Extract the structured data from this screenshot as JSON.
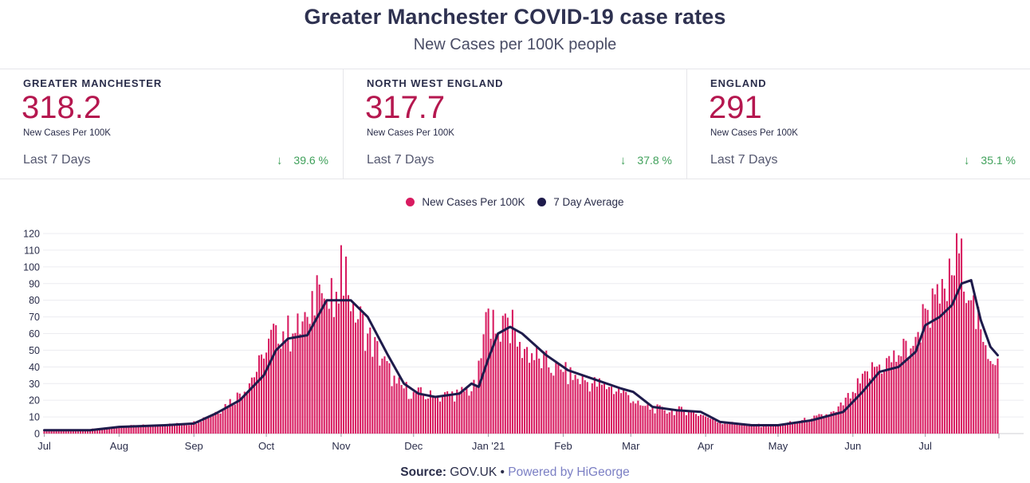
{
  "header": {
    "title": "Greater Manchester COVID-19 case rates",
    "subtitle": "New Cases per 100K people"
  },
  "cards": [
    {
      "name": "GREATER MANCHESTER",
      "value": "318.2",
      "unit": "New Cases Per 100K",
      "period": "Last 7 Days",
      "change": "39.6 %",
      "direction": "down"
    },
    {
      "name": "NORTH WEST ENGLAND",
      "value": "317.7",
      "unit": "New Cases Per 100K",
      "period": "Last 7 Days",
      "change": "37.8 %",
      "direction": "down"
    },
    {
      "name": "ENGLAND",
      "value": "291",
      "unit": "New Cases Per 100K",
      "period": "Last 7 Days",
      "change": "35.1 %",
      "direction": "down"
    }
  ],
  "colors": {
    "bars": "#d81b60",
    "average_line": "#1e1b4b",
    "value_text": "#b5174f",
    "change_text": "#3fa05a",
    "powered_text": "#7b7fc4"
  },
  "legend": {
    "bars_label": "New Cases Per 100K",
    "line_label": "7 Day Average"
  },
  "footer": {
    "source_label": "Source:",
    "source_name": "GOV.UK",
    "separator": "•",
    "powered": "Powered by HiGeorge"
  },
  "chart_data": {
    "type": "bar",
    "x_tick_labels": [
      "Jul",
      "Aug",
      "Sep",
      "Oct",
      "Nov",
      "Dec",
      "Jan '21",
      "Feb",
      "Mar",
      "Apr",
      "May",
      "Jun",
      "Jul"
    ],
    "y_ticks": [
      0,
      10,
      20,
      30,
      40,
      50,
      60,
      70,
      80,
      90,
      100,
      110,
      120
    ],
    "ylim": [
      0,
      120
    ],
    "grid": true,
    "legend_position": "top-center",
    "series": [
      {
        "name": "New Cases Per 100K",
        "type": "bar",
        "interval": "daily",
        "points": [
          [
            "2020-07-01",
            2
          ],
          [
            "2020-07-15",
            2
          ],
          [
            "2020-07-31",
            4
          ],
          [
            "2020-08-15",
            5
          ],
          [
            "2020-08-31",
            6
          ],
          [
            "2020-09-10",
            13
          ],
          [
            "2020-09-20",
            24
          ],
          [
            "2020-09-30",
            45
          ],
          [
            "2020-10-05",
            65
          ],
          [
            "2020-10-12",
            60
          ],
          [
            "2020-10-18",
            70
          ],
          [
            "2020-10-22",
            95
          ],
          [
            "2020-10-26",
            80
          ],
          [
            "2020-10-31",
            78
          ],
          [
            "2020-11-01",
            113
          ],
          [
            "2020-11-06",
            78
          ],
          [
            "2020-11-12",
            60
          ],
          [
            "2020-11-18",
            45
          ],
          [
            "2020-11-24",
            30
          ],
          [
            "2020-12-01",
            25
          ],
          [
            "2020-12-10",
            22
          ],
          [
            "2020-12-20",
            25
          ],
          [
            "2020-12-27",
            28
          ],
          [
            "2021-01-01",
            75
          ],
          [
            "2021-01-04",
            60
          ],
          [
            "2021-01-08",
            72
          ],
          [
            "2021-01-14",
            55
          ],
          [
            "2021-01-22",
            45
          ],
          [
            "2021-02-01",
            37
          ],
          [
            "2021-02-10",
            32
          ],
          [
            "2021-02-20",
            28
          ],
          [
            "2021-02-27",
            25
          ],
          [
            "2021-03-05",
            17
          ],
          [
            "2021-03-15",
            14
          ],
          [
            "2021-03-25",
            14
          ],
          [
            "2021-03-31",
            11
          ],
          [
            "2021-04-07",
            7
          ],
          [
            "2021-04-20",
            5
          ],
          [
            "2021-05-01",
            5
          ],
          [
            "2021-05-15",
            9
          ],
          [
            "2021-05-25",
            13
          ],
          [
            "2021-06-01",
            25
          ],
          [
            "2021-06-10",
            40
          ],
          [
            "2021-06-20",
            47
          ],
          [
            "2021-06-27",
            58
          ],
          [
            "2021-07-01",
            75
          ],
          [
            "2021-07-07",
            78
          ],
          [
            "2021-07-12",
            95
          ],
          [
            "2021-07-16",
            117
          ],
          [
            "2021-07-20",
            80
          ],
          [
            "2021-07-25",
            55
          ],
          [
            "2021-07-31",
            45
          ]
        ]
      },
      {
        "name": "7 Day Average",
        "type": "line",
        "points": [
          [
            "2020-07-01",
            2
          ],
          [
            "2020-07-20",
            2
          ],
          [
            "2020-08-01",
            4
          ],
          [
            "2020-08-20",
            5
          ],
          [
            "2020-09-01",
            6
          ],
          [
            "2020-09-10",
            12
          ],
          [
            "2020-09-20",
            20
          ],
          [
            "2020-09-30",
            35
          ],
          [
            "2020-10-05",
            50
          ],
          [
            "2020-10-10",
            57
          ],
          [
            "2020-10-18",
            59
          ],
          [
            "2020-10-26",
            80
          ],
          [
            "2020-11-01",
            80
          ],
          [
            "2020-11-05",
            80
          ],
          [
            "2020-11-12",
            70
          ],
          [
            "2020-11-20",
            48
          ],
          [
            "2020-11-27",
            30
          ],
          [
            "2020-12-03",
            24
          ],
          [
            "2020-12-10",
            22
          ],
          [
            "2020-12-20",
            24
          ],
          [
            "2020-12-25",
            30
          ],
          [
            "2020-12-28",
            28
          ],
          [
            "2021-01-01",
            45
          ],
          [
            "2021-01-05",
            60
          ],
          [
            "2021-01-10",
            64
          ],
          [
            "2021-01-15",
            60
          ],
          [
            "2021-01-25",
            47
          ],
          [
            "2021-02-03",
            38
          ],
          [
            "2021-02-15",
            32
          ],
          [
            "2021-02-25",
            27
          ],
          [
            "2021-03-02",
            25
          ],
          [
            "2021-03-10",
            16
          ],
          [
            "2021-03-20",
            14
          ],
          [
            "2021-03-30",
            13
          ],
          [
            "2021-04-07",
            7
          ],
          [
            "2021-04-20",
            5
          ],
          [
            "2021-05-01",
            5
          ],
          [
            "2021-05-15",
            8
          ],
          [
            "2021-05-28",
            13
          ],
          [
            "2021-06-05",
            25
          ],
          [
            "2021-06-12",
            37
          ],
          [
            "2021-06-20",
            40
          ],
          [
            "2021-06-27",
            49
          ],
          [
            "2021-07-01",
            65
          ],
          [
            "2021-07-07",
            70
          ],
          [
            "2021-07-12",
            77
          ],
          [
            "2021-07-16",
            90
          ],
          [
            "2021-07-20",
            92
          ],
          [
            "2021-07-24",
            68
          ],
          [
            "2021-07-28",
            52
          ],
          [
            "2021-07-31",
            47
          ]
        ]
      }
    ]
  }
}
